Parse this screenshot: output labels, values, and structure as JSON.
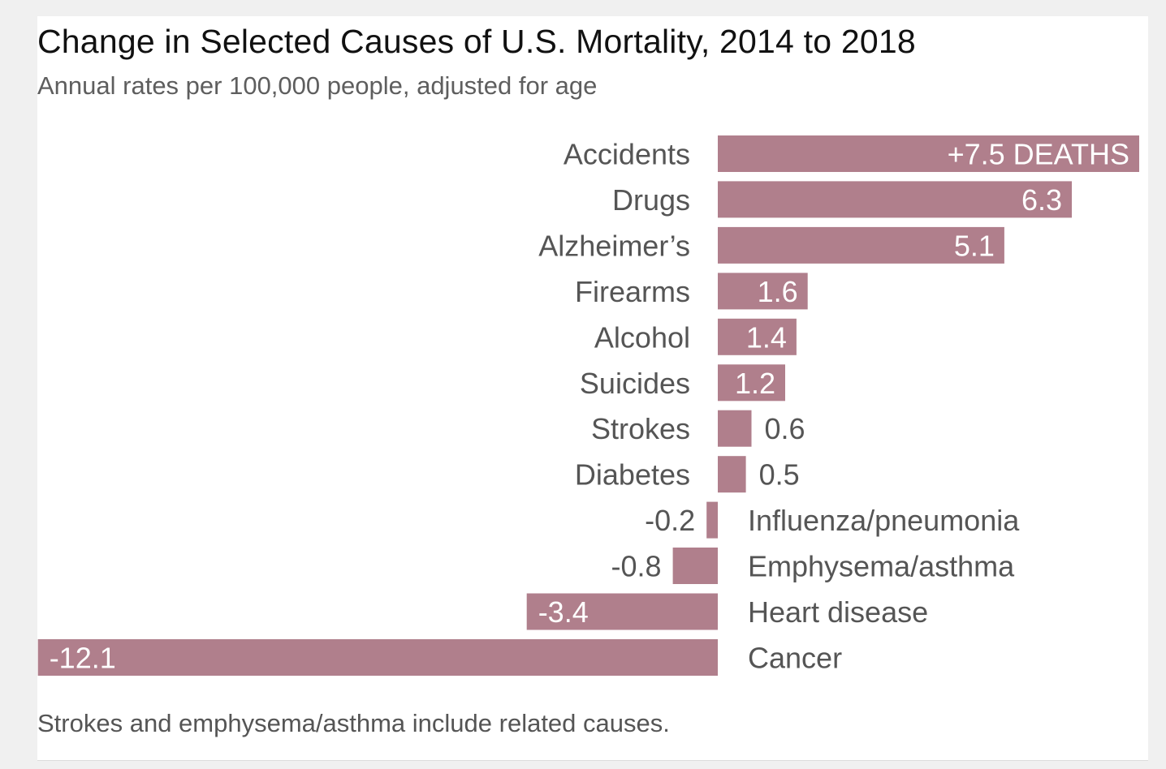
{
  "chart_data": {
    "type": "bar",
    "orientation": "horizontal",
    "title": "Change in Selected Causes of U.S. Mortality, 2014 to 2018",
    "subtitle": "Annual rates per 100,000 people, adjusted for age",
    "categories": [
      "Accidents",
      "Drugs",
      "Alzheimer’s",
      "Firearms",
      "Alcohol",
      "Suicides",
      "Strokes",
      "Diabetes",
      "Influenza/pneumonia",
      "Emphysema/asthma",
      "Heart disease",
      "Cancer"
    ],
    "values": [
      7.5,
      6.3,
      5.1,
      1.6,
      1.4,
      1.2,
      0.6,
      0.5,
      -0.2,
      -0.8,
      -3.4,
      -12.1
    ],
    "value_labels": [
      "+7.5 DEATHS",
      "6.3",
      "5.1",
      "1.6",
      "1.4",
      "1.2",
      "0.6",
      "0.5",
      "-0.2",
      "-0.8",
      "-3.4",
      "-12.1"
    ],
    "xlim": [
      -12.1,
      7.5
    ],
    "grid": false,
    "legend": "none",
    "bar_color": "#b07f8c",
    "footnote": "Strokes and emphysema/asthma include related causes."
  },
  "colors": {
    "bar": "#b07f8c",
    "label_inside": "#ffffff",
    "label_outside": "#555555",
    "title": "#111111",
    "subtitle": "#5e5e5e"
  }
}
